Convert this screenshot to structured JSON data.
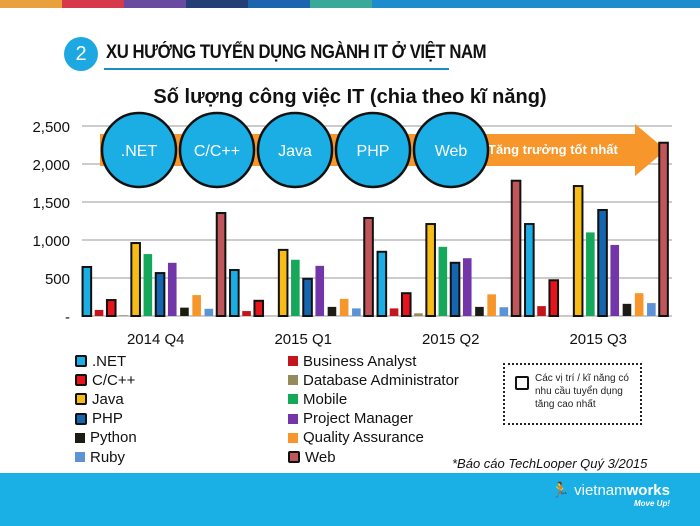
{
  "header": {
    "number": "2",
    "title": "XU HƯỚNG TUYỂN DỤNG NGÀNH IT Ở VIỆT NAM",
    "stripe_colors": [
      "#e9a23b",
      "#d63a4a",
      "#6a4aa0",
      "#233f75",
      "#1d64ae",
      "#3aa99a",
      "#1c8ccd"
    ]
  },
  "callouts": {
    "bubbles": [
      ".NET",
      "C/C++",
      "Java",
      "PHP",
      "Web"
    ],
    "arrow_label": "Tăng trưởng tốt nhất"
  },
  "note": {
    "text": "Các vị trí / kĩ năng có nhu cầu tuyển dụng tăng cao nhất"
  },
  "source": "*Báo cáo TechLooper Quý 3/2015",
  "footer": {
    "logo_text_light": "vietnam",
    "logo_text_bold": "works",
    "tagline": "Move Up!",
    "color": "#1ab0e6"
  },
  "chart_data": {
    "type": "bar",
    "title": "Số lượng công việc IT (chia theo kĩ năng)",
    "categories": [
      "2014 Q4",
      "2015 Q1",
      "2015 Q2",
      "2015 Q3"
    ],
    "ylim": [
      0,
      2500
    ],
    "yticks": [
      "-",
      "500",
      "1,000",
      "1,500",
      "2,000",
      "2,500"
    ],
    "grid": true,
    "legend": "bottom",
    "series": [
      {
        "name": ".NET",
        "color": "#1aaee5",
        "highlight": true,
        "values": [
          645,
          605,
          845,
          1210
        ]
      },
      {
        "name": "Business Analyst",
        "color": "#c4141c",
        "highlight": false,
        "values": [
          80,
          65,
          100,
          130
        ]
      },
      {
        "name": "C/C++",
        "color": "#e8141c",
        "highlight": true,
        "values": [
          210,
          200,
          300,
          470
        ]
      },
      {
        "name": "Database Administrator",
        "color": "#948a5c",
        "highlight": false,
        "values": [
          10,
          5,
          35,
          5
        ]
      },
      {
        "name": "Java",
        "color": "#f7bd16",
        "highlight": true,
        "values": [
          960,
          870,
          1210,
          1710
        ]
      },
      {
        "name": "Mobile",
        "color": "#16a85a",
        "highlight": false,
        "values": [
          815,
          740,
          910,
          1100
        ]
      },
      {
        "name": "PHP",
        "color": "#1566b0",
        "highlight": true,
        "values": [
          565,
          490,
          700,
          1395
        ]
      },
      {
        "name": "Project Manager",
        "color": "#7236a8",
        "highlight": false,
        "values": [
          700,
          660,
          760,
          935
        ]
      },
      {
        "name": "Python",
        "color": "#1c1c14",
        "highlight": false,
        "values": [
          110,
          120,
          120,
          160
        ]
      },
      {
        "name": "Quality Assurance",
        "color": "#f7962a",
        "highlight": false,
        "values": [
          275,
          225,
          285,
          300
        ]
      },
      {
        "name": "Ruby",
        "color": "#5b93d6",
        "highlight": false,
        "values": [
          95,
          100,
          115,
          170
        ]
      },
      {
        "name": "Web",
        "color": "#c0565a",
        "highlight": true,
        "values": [
          1355,
          1290,
          1780,
          2280
        ]
      }
    ]
  }
}
